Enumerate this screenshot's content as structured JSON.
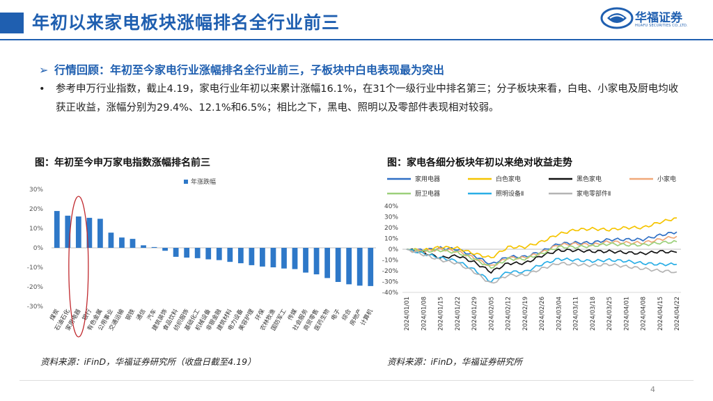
{
  "header": {
    "title": "年初以来家电板块涨幅排名全行业前三",
    "logo_text": "华福证券",
    "logo_sub": "HUAFU SECURITIES CO.,LTD."
  },
  "section": {
    "heading": "行情回顾：年初至今家电行业涨幅排名全行业前三，子板块中白电表现最为突出",
    "bullet": "参考申万行业指数，截止4.19，家电行业年初以来累计涨幅16.1%，在31个一级行业中排名第三；分子板块来看，白电、小家电及厨电均收获正收益，涨幅分别为29.4%、12.1%和6.5%；相比之下，黑电、照明以及零部件表现相对较弱。"
  },
  "left_chart": {
    "caption": "图：年初至今申万家电指数涨幅排名前三",
    "source": "资料来源：iFinD，华福证券研究所（收盘日截至4.19）"
  },
  "right_chart": {
    "caption": "图：家电各细分板块年初以来绝对收益走势",
    "source": "资料来源：iFinD，华福证券研究所"
  },
  "page_number": "4",
  "colors": {
    "brand": "#1f5fb0",
    "bar": "#2e78c8",
    "highlight": "#c0282d"
  },
  "chart_data": [
    {
      "type": "bar",
      "title": "年初至今申万家电指数涨幅排名前三",
      "legend": "年涨跌幅",
      "categories": [
        "煤炭",
        "石油石化",
        "家用电器",
        "银行",
        "有色金属",
        "公用事业",
        "交通运输",
        "钢铁",
        "通信",
        "汽车",
        "建筑装饰",
        "食品饮料",
        "纺织服饰",
        "基础化工",
        "机械设备",
        "非银金融",
        "建筑材料",
        "电力设备",
        "美容护理",
        "环保",
        "农林牧渔",
        "国防军工",
        "传媒",
        "社会服务",
        "商贸零售",
        "医药生物",
        "电子",
        "综合",
        "房地产",
        "计算机"
      ],
      "values": [
        18.9,
        16.5,
        16.1,
        15.4,
        14.9,
        7.8,
        5.3,
        4.6,
        1.3,
        0.4,
        -1.5,
        -4.6,
        -5.0,
        -5.3,
        -5.9,
        -6.3,
        -7.2,
        -7.9,
        -8.9,
        -9.6,
        -10.0,
        -10.6,
        -10.9,
        -12.7,
        -13.6,
        -15.5,
        -17.5,
        -18.7,
        -19.4,
        -19.6
      ],
      "highlight_category": "家用电器",
      "ylim": [
        -30,
        30
      ],
      "yticks": [
        "30%",
        "20%",
        "10%",
        "0%",
        "-10%",
        "-20%",
        "-30%"
      ]
    },
    {
      "type": "line",
      "title": "家电各细分板块年初以来绝对收益走势",
      "x": [
        "2024/01/01",
        "2024/01/08",
        "2024/01/15",
        "2024/01/22",
        "2024/01/29",
        "2024/02/05",
        "2024/02/12",
        "2024/02/19",
        "2024/02/26",
        "2024/03/04",
        "2024/03/11",
        "2024/03/18",
        "2024/03/25",
        "2024/04/01",
        "2024/04/08",
        "2024/04/15",
        "2024/04/22"
      ],
      "ylim": [
        -40,
        40
      ],
      "yticks": [
        "40%",
        "30%",
        "20%",
        "10%",
        "0%",
        "-10%",
        "-20%",
        "-30%",
        "-40%"
      ],
      "series": [
        {
          "name": "家用电器",
          "color": "#2f6fc4",
          "values": [
            0,
            -1,
            1,
            0,
            -6,
            -14,
            -7,
            -7,
            -2,
            5,
            6,
            6,
            9,
            9,
            9,
            13,
            16
          ]
        },
        {
          "name": "白色家电",
          "color": "#f5c400",
          "values": [
            0,
            -1,
            2,
            1,
            -4,
            -8,
            2,
            2,
            7,
            14,
            18,
            19,
            18,
            20,
            20,
            25,
            29
          ]
        },
        {
          "name": "黑色家电",
          "color": "#111111",
          "values": [
            0,
            -3,
            -8,
            -6,
            -12,
            -21,
            -13,
            -13,
            -6,
            -1,
            -1,
            -2,
            -2,
            -3,
            -4,
            -2,
            -3
          ]
        },
        {
          "name": "小家电",
          "color": "#f0a878",
          "values": [
            0,
            -2,
            0,
            -2,
            -8,
            -16,
            -8,
            -8,
            -3,
            4,
            5,
            4,
            7,
            6,
            6,
            9,
            12
          ]
        },
        {
          "name": "厨卫电器",
          "color": "#9bd07a",
          "values": [
            0,
            -2,
            -1,
            -3,
            -9,
            -17,
            -9,
            -9,
            -4,
            2,
            2,
            3,
            5,
            4,
            4,
            6,
            7
          ]
        },
        {
          "name": "照明设备Ⅱ",
          "color": "#2aaee6",
          "values": [
            0,
            -4,
            -8,
            -11,
            -19,
            -30,
            -21,
            -21,
            -14,
            -9,
            -10,
            -11,
            -10,
            -11,
            -13,
            -14,
            -14
          ]
        },
        {
          "name": "家电零部件Ⅱ",
          "color": "#b4b4b4",
          "values": [
            0,
            -5,
            -10,
            -13,
            -21,
            -32,
            -24,
            -24,
            -18,
            -13,
            -14,
            -15,
            -14,
            -16,
            -18,
            -20,
            -21
          ]
        }
      ]
    }
  ]
}
